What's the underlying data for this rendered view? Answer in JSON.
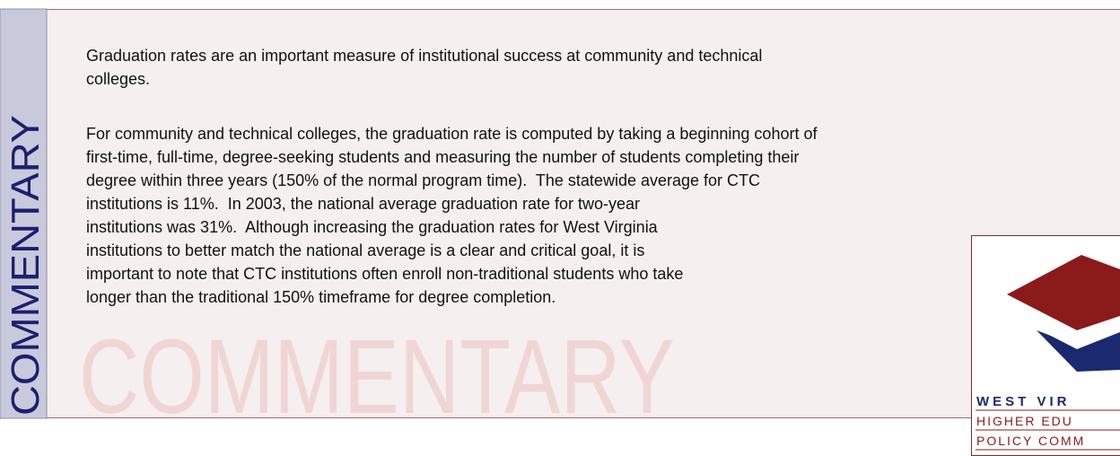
{
  "sidebar": {
    "label": "COMMENTARY"
  },
  "watermark": "COMMENTARY",
  "paragraphs": [
    [
      "Graduation rates are an important measure of institutional success at community and technical",
      "colleges."
    ],
    [
      "For community and technical colleges, the graduation rate is computed by taking a beginning cohort of",
      "first-time, full-time, degree-seeking students and measuring the number of students completing their",
      "degree within three years (150% of the normal program time).  The statewide average for CTC",
      "institutions is 11%.  In 2003, the national average graduation rate for two-year",
      "institutions was 31%.  Although increasing the graduation rates for West Virginia",
      "institutions to better match the national average is a clear and critical goal, it is",
      "important to note that CTC institutions often enroll non-traditional students who take",
      "longer than the traditional 150% timeframe for degree completion."
    ]
  ],
  "logo": {
    "line1": "WEST VIR",
    "line2": "HIGHER EDU",
    "line3": "POLICY COMM"
  }
}
